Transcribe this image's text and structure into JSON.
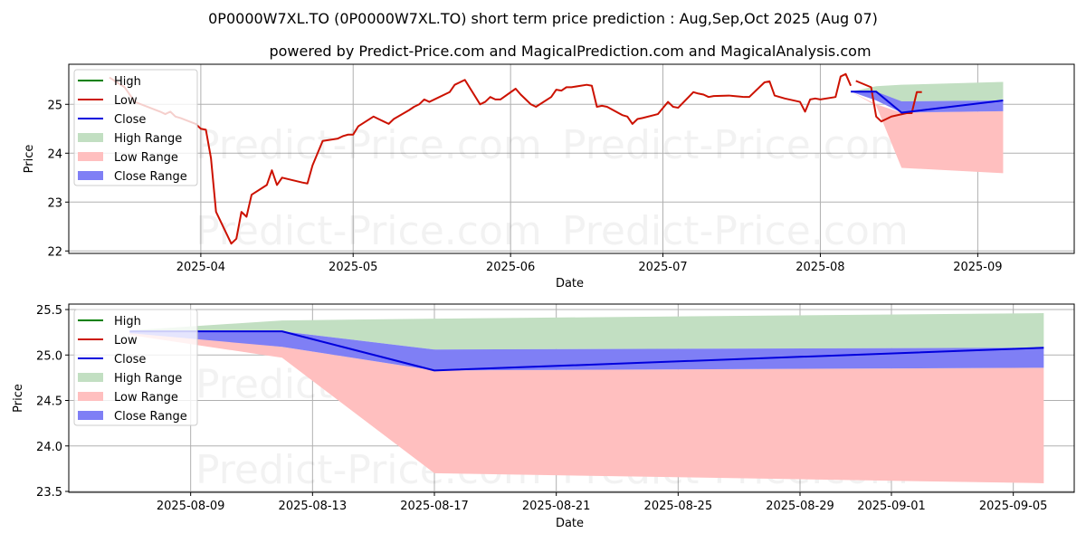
{
  "header": {
    "title": "0P0000W7XL.TO (0P0000W7XL.TO) short term price prediction : Aug,Sep,Oct 2025 (Aug 07)",
    "subtitle": "powered by Predict-Price.com and MagicalPrediction.com and MagicalAnalysis.com"
  },
  "watermark": "Predict-Price.com",
  "legend": [
    "High",
    "Low",
    "Close",
    "High Range",
    "Low Range",
    "Close Range"
  ],
  "colors": {
    "high": "#008000",
    "low": "#cc1100",
    "close": "#0000dd",
    "high_range": "#c2dfc2",
    "low_range": "#ffbfbf",
    "close_range": "#7f7ff5"
  },
  "chart_data": [
    {
      "type": "line",
      "xlabel": "Date",
      "ylabel": "Price",
      "xlim": [
        "2025-03-06",
        "2025-09-20"
      ],
      "ylim": [
        21.95,
        25.82
      ],
      "x_ticks": [
        "2025-04-01",
        "2025-05-01",
        "2025-06-01",
        "2025-07-01",
        "2025-08-01",
        "2025-09-01"
      ],
      "x_tick_labels": [
        "2025-04",
        "2025-05",
        "2025-06",
        "2025-07",
        "2025-08",
        "2025-09"
      ],
      "y_ticks": [
        22,
        23,
        24,
        25
      ],
      "y_tick_labels": [
        "22",
        "23",
        "24",
        "25"
      ],
      "grid": true,
      "legend_position": "upper-left",
      "series": [
        {
          "name": "Low",
          "x": [
            "2025-03-14",
            "2025-03-17",
            "2025-03-19",
            "2025-03-21",
            "2025-03-24",
            "2025-03-25",
            "2025-03-26",
            "2025-03-27",
            "2025-03-28",
            "2025-03-31",
            "2025-04-01",
            "2025-04-02",
            "2025-04-03",
            "2025-04-04",
            "2025-04-07",
            "2025-04-08",
            "2025-04-09",
            "2025-04-10",
            "2025-04-11",
            "2025-04-14",
            "2025-04-15",
            "2025-04-16",
            "2025-04-17",
            "2025-04-21",
            "2025-04-22",
            "2025-04-23",
            "2025-04-24",
            "2025-04-25",
            "2025-04-28",
            "2025-04-29",
            "2025-04-30",
            "2025-05-01",
            "2025-05-02",
            "2025-05-05",
            "2025-05-06",
            "2025-05-07",
            "2025-05-08",
            "2025-05-09",
            "2025-05-12",
            "2025-05-13",
            "2025-05-14",
            "2025-05-15",
            "2025-05-16",
            "2025-05-20",
            "2025-05-21",
            "2025-05-22",
            "2025-05-23",
            "2025-05-26",
            "2025-05-27",
            "2025-05-28",
            "2025-05-29",
            "2025-05-30",
            "2025-06-02",
            "2025-06-03",
            "2025-06-04",
            "2025-06-05",
            "2025-06-06",
            "2025-06-09",
            "2025-06-10",
            "2025-06-11",
            "2025-06-12",
            "2025-06-13",
            "2025-06-16",
            "2025-06-17",
            "2025-06-18",
            "2025-06-19",
            "2025-06-20",
            "2025-06-23",
            "2025-06-24",
            "2025-06-25",
            "2025-06-26",
            "2025-06-27",
            "2025-06-30",
            "2025-07-02",
            "2025-07-03",
            "2025-07-04",
            "2025-07-07",
            "2025-07-08",
            "2025-07-09",
            "2025-07-10",
            "2025-07-11",
            "2025-07-14",
            "2025-07-15",
            "2025-07-16",
            "2025-07-17",
            "2025-07-18",
            "2025-07-21",
            "2025-07-22",
            "2025-07-23",
            "2025-07-24",
            "2025-07-25",
            "2025-07-28",
            "2025-07-29",
            "2025-07-30",
            "2025-07-31",
            "2025-08-01",
            "2025-08-04",
            "2025-08-05",
            "2025-08-06",
            "2025-08-07"
          ],
          "y": [
            25.55,
            25.35,
            25.05,
            24.97,
            24.85,
            24.8,
            24.85,
            24.75,
            24.72,
            24.6,
            24.5,
            24.48,
            23.9,
            22.8,
            22.15,
            22.25,
            22.8,
            22.7,
            23.15,
            23.35,
            23.65,
            23.35,
            23.5,
            23.4,
            23.38,
            23.75,
            24.0,
            24.25,
            24.3,
            24.35,
            24.38,
            24.38,
            24.55,
            24.75,
            24.7,
            24.65,
            24.6,
            24.7,
            24.88,
            24.95,
            25.0,
            25.1,
            25.05,
            25.25,
            25.4,
            25.45,
            25.5,
            25.0,
            25.05,
            25.15,
            25.1,
            25.1,
            25.32,
            25.2,
            25.1,
            25.0,
            24.95,
            25.15,
            25.3,
            25.28,
            25.35,
            25.35,
            25.4,
            25.38,
            24.95,
            24.97,
            24.95,
            24.78,
            24.75,
            24.6,
            24.7,
            24.72,
            24.8,
            25.05,
            24.95,
            24.93,
            25.25,
            25.22,
            25.2,
            25.15,
            25.17,
            25.18,
            25.17,
            25.16,
            25.15,
            25.15,
            25.45,
            25.47,
            25.18,
            25.15,
            25.12,
            25.05,
            24.85,
            25.1,
            25.12,
            25.1,
            25.15,
            25.57,
            25.62,
            25.38
          ],
          "x_tail": [
            "2025-08-08",
            "2025-08-11",
            "2025-08-12",
            "2025-08-13",
            "2025-08-14",
            "2025-08-15",
            "2025-08-18",
            "2025-08-19",
            "2025-08-20",
            "2025-08-21"
          ],
          "y_tail": [
            25.48,
            25.35,
            24.75,
            24.65,
            24.7,
            24.75,
            24.82,
            24.82,
            25.25,
            25.25
          ]
        },
        {
          "name": "Close",
          "x": [
            "2025-08-07",
            "2025-08-12",
            "2025-08-17",
            "2025-09-06"
          ],
          "y": [
            25.26,
            25.26,
            24.83,
            25.08
          ]
        },
        {
          "name": "High Range",
          "x": [
            "2025-08-07",
            "2025-08-12",
            "2025-08-17",
            "2025-09-06"
          ],
          "upper": [
            25.26,
            25.37,
            25.4,
            25.46
          ],
          "lower": [
            25.26,
            25.1,
            25.06,
            25.08
          ]
        },
        {
          "name": "Low Range",
          "x": [
            "2025-08-07",
            "2025-08-12",
            "2025-08-17",
            "2025-09-06"
          ],
          "upper": [
            25.26,
            25.0,
            24.83,
            24.86
          ],
          "lower": [
            25.26,
            24.97,
            23.7,
            23.59
          ]
        },
        {
          "name": "Close Range",
          "x": [
            "2025-08-07",
            "2025-08-12",
            "2025-08-17",
            "2025-09-06"
          ],
          "upper": [
            25.26,
            25.26,
            25.06,
            25.08
          ],
          "lower": [
            25.26,
            25.08,
            24.83,
            24.86
          ]
        }
      ]
    },
    {
      "type": "line",
      "xlabel": "Date",
      "ylabel": "Price",
      "xlim": [
        "2025-08-05",
        "2025-09-07"
      ],
      "ylim": [
        23.49,
        25.56
      ],
      "x_ticks": [
        "2025-08-09",
        "2025-08-13",
        "2025-08-17",
        "2025-08-21",
        "2025-08-25",
        "2025-08-29",
        "2025-09-01",
        "2025-09-05"
      ],
      "x_tick_labels": [
        "2025-08-09",
        "2025-08-13",
        "2025-08-17",
        "2025-08-21",
        "2025-08-25",
        "2025-08-29",
        "2025-09-01",
        "2025-09-05"
      ],
      "y_ticks": [
        23.5,
        24.0,
        24.5,
        25.0,
        25.5
      ],
      "y_tick_labels": [
        "23.5",
        "24.0",
        "24.5",
        "25.0",
        "25.5"
      ],
      "grid": true,
      "legend_position": "upper-left",
      "series": [
        {
          "name": "Close",
          "x": [
            "2025-08-07",
            "2025-08-12",
            "2025-08-17",
            "2025-09-06"
          ],
          "y": [
            25.26,
            25.26,
            24.83,
            25.08
          ]
        },
        {
          "name": "High Range",
          "x": [
            "2025-08-07",
            "2025-08-12",
            "2025-08-17",
            "2025-09-06"
          ],
          "upper": [
            25.27,
            25.38,
            25.4,
            25.46
          ],
          "lower": [
            25.26,
            25.26,
            25.06,
            25.08
          ]
        },
        {
          "name": "Low Range",
          "x": [
            "2025-08-07",
            "2025-08-12",
            "2025-08-17",
            "2025-09-06"
          ],
          "upper": [
            25.26,
            25.09,
            24.83,
            24.86
          ],
          "lower": [
            25.22,
            24.97,
            23.7,
            23.59
          ]
        },
        {
          "name": "Close Range",
          "x": [
            "2025-08-07",
            "2025-08-12",
            "2025-08-17",
            "2025-09-06"
          ],
          "upper": [
            25.26,
            25.26,
            25.06,
            25.08
          ],
          "lower": [
            25.24,
            25.09,
            24.83,
            24.86
          ]
        }
      ]
    }
  ]
}
